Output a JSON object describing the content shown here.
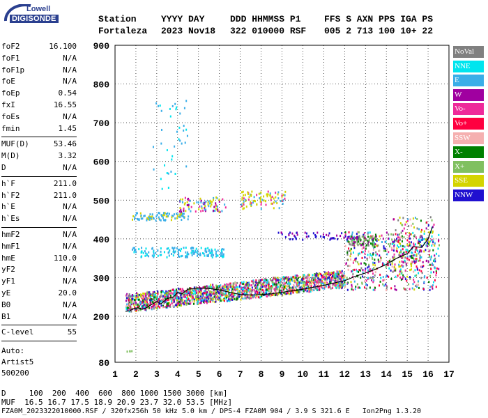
{
  "logo": {
    "top": "Lowell",
    "main": "DIGISONDE"
  },
  "header": {
    "labels": [
      "Station",
      "YYYY DAY",
      "DDD HHMMSS P1",
      "FFS S AXN PPS IGA PS"
    ],
    "values": [
      "Fortaleza",
      "2023 Nov18",
      "322 010000 RSF",
      "005 2 713 100 10+ 22"
    ]
  },
  "params": [
    {
      "label": "foF2",
      "value": "16.100"
    },
    {
      "label": "foF1",
      "value": "N/A"
    },
    {
      "label": "foF1p",
      "value": "N/A"
    },
    {
      "label": "foE",
      "value": "N/A"
    },
    {
      "label": "foEp",
      "value": "0.54"
    },
    {
      "label": "fxI",
      "value": "16.55"
    },
    {
      "label": "foEs",
      "value": "N/A"
    },
    {
      "label": "fmin",
      "value": "1.45"
    },
    {
      "label": "MUF(D)",
      "value": "53.46"
    },
    {
      "label": "M(D)",
      "value": "3.32"
    },
    {
      "label": "D",
      "value": "N/A"
    },
    {
      "label": "h`F",
      "value": "211.0"
    },
    {
      "label": "h`F2",
      "value": "211.0"
    },
    {
      "label": "h`E",
      "value": "N/A"
    },
    {
      "label": "h`Es",
      "value": "N/A"
    },
    {
      "label": "hmF2",
      "value": "N/A"
    },
    {
      "label": "hmF1",
      "value": "N/A"
    },
    {
      "label": "hmE",
      "value": "110.0"
    },
    {
      "label": "yF2",
      "value": "N/A"
    },
    {
      "label": "yF1",
      "value": "N/A"
    },
    {
      "label": "yE",
      "value": "20.0"
    },
    {
      "label": "B0",
      "value": "N/A"
    },
    {
      "label": "B1",
      "value": "N/A"
    },
    {
      "label": "C-level",
      "value": "55"
    }
  ],
  "auto": [
    "Auto:",
    "Artist5",
    "500200"
  ],
  "legend": [
    {
      "label": "NoVal",
      "color": "#808080"
    },
    {
      "label": "NNE",
      "color": "#00e5ee"
    },
    {
      "label": "E",
      "color": "#3aaee8"
    },
    {
      "label": "W",
      "color": "#a000a0"
    },
    {
      "label": "Vo-",
      "color": "#ee2a9a"
    },
    {
      "label": "Vo+",
      "color": "#ff0040"
    },
    {
      "label": "SSW",
      "color": "#f5b0b0"
    },
    {
      "label": "X-",
      "color": "#008000"
    },
    {
      "label": "X+",
      "color": "#80c060"
    },
    {
      "label": "SSE",
      "color": "#d4d400"
    },
    {
      "label": "NNW",
      "color": "#2010d0"
    }
  ],
  "footer": {
    "d_line": "D     100  200  400  600  800 1000 1500 3000 [km]",
    "muf_line": "MUF  16.5 16.7 17.5 18.9 20.9 23.7 32.0 53.5 [MHz]",
    "file_line": "FZA0M_2023322010000.RSF / 320fx256h 50 kHz 5.0 km / DPS-4 FZA0M 904 / 3.9 S 321.6 E   Ion2Png 1.3.20"
  },
  "chart_data": {
    "type": "scatter",
    "xlim": [
      1,
      17
    ],
    "ylim": [
      80,
      900
    ],
    "xticks": [
      1,
      2,
      3,
      4,
      5,
      6,
      7,
      8,
      9,
      10,
      11,
      12,
      13,
      14,
      15,
      16,
      17
    ],
    "yticks": [
      80,
      200,
      300,
      400,
      500,
      600,
      700,
      800,
      900
    ],
    "grid": true,
    "trace": [
      [
        1.5,
        213
      ],
      [
        1.7,
        214
      ],
      [
        1.9,
        220
      ],
      [
        2.1,
        222
      ],
      [
        2.3,
        218
      ],
      [
        2.5,
        222
      ],
      [
        2.8,
        232
      ],
      [
        3.0,
        238
      ],
      [
        3.2,
        232
      ],
      [
        3.5,
        246
      ],
      [
        3.8,
        250
      ],
      [
        4.0,
        262
      ],
      [
        4.2,
        258
      ],
      [
        4.5,
        270
      ],
      [
        5.0,
        273
      ],
      [
        5.5,
        272
      ],
      [
        6.0,
        268
      ],
      [
        6.5,
        262
      ],
      [
        7.0,
        256
      ],
      [
        7.5,
        255
      ],
      [
        8.0,
        256
      ],
      [
        8.5,
        258
      ],
      [
        9.0,
        262
      ],
      [
        9.5,
        266
      ],
      [
        10.0,
        270
      ],
      [
        10.5,
        275
      ],
      [
        11.0,
        280
      ],
      [
        11.5,
        286
      ],
      [
        12.0,
        292
      ],
      [
        12.5,
        303
      ],
      [
        13.0,
        312
      ],
      [
        13.5,
        322
      ],
      [
        14.0,
        334
      ],
      [
        14.5,
        350
      ],
      [
        15.0,
        362
      ],
      [
        15.3,
        380
      ],
      [
        15.7,
        378
      ],
      [
        16.0,
        400
      ],
      [
        16.2,
        430
      ]
    ]
  }
}
